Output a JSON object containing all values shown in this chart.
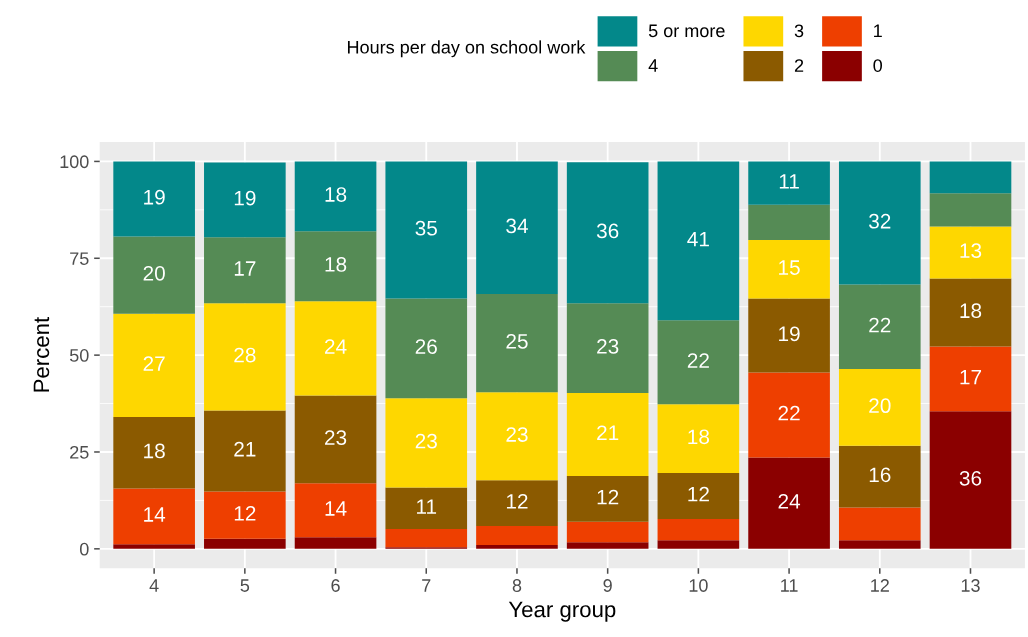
{
  "chart_data": {
    "type": "bar",
    "stacked": true,
    "xlabel": "Year group",
    "ylabel": "Percent",
    "legend_title": "Hours per day on school work",
    "legend": "top",
    "grid": true,
    "categories": [
      "4",
      "5",
      "6",
      "7",
      "8",
      "9",
      "10",
      "11",
      "12",
      "13"
    ],
    "ylim": [
      -5,
      105
    ],
    "yticks": [
      0,
      25,
      50,
      75,
      100
    ],
    "series": [
      {
        "name": "0",
        "color": "#8b0000",
        "values": [
          1.2,
          2.6,
          3.0,
          0.4,
          1.0,
          1.7,
          2.2,
          23.6,
          2.2,
          35.5
        ],
        "value_labels": [
          null,
          null,
          null,
          null,
          null,
          null,
          null,
          "24",
          null,
          "36"
        ]
      },
      {
        "name": "1",
        "color": "#ee3f00",
        "values": [
          14.4,
          12.2,
          13.9,
          4.7,
          4.9,
          5.3,
          5.5,
          21.9,
          8.5,
          16.7
        ],
        "value_labels": [
          "14",
          "12",
          "14",
          null,
          null,
          null,
          null,
          "22",
          null,
          "17"
        ]
      },
      {
        "name": "2",
        "color": "#8b5a00",
        "values": [
          18.4,
          20.9,
          22.7,
          10.7,
          11.8,
          11.8,
          11.9,
          19.1,
          15.9,
          17.6
        ],
        "value_labels": [
          "18",
          "21",
          "23",
          "11",
          "12",
          "12",
          "12",
          "19",
          "16",
          "18"
        ]
      },
      {
        "name": "3",
        "color": "#fed700",
        "values": [
          26.7,
          27.7,
          24.3,
          23.1,
          22.7,
          21.4,
          17.7,
          15.1,
          19.8,
          13.4
        ],
        "value_labels": [
          "27",
          "28",
          "24",
          "23",
          "23",
          "21",
          "18",
          "15",
          "20",
          "13"
        ]
      },
      {
        "name": "4",
        "color": "#558b55",
        "values": [
          19.9,
          17.0,
          18.1,
          25.7,
          25.4,
          23.2,
          21.7,
          9.1,
          21.8,
          8.6
        ],
        "value_labels": [
          "20",
          "17",
          "18",
          "26",
          "25",
          "23",
          "22",
          null,
          "22",
          null
        ]
      },
      {
        "name": "5 or more",
        "color": "#03888a",
        "values": [
          19.4,
          19.3,
          18.0,
          35.4,
          34.2,
          36.4,
          41.0,
          11.2,
          31.8,
          8.2
        ],
        "value_labels": [
          "19",
          "19",
          "18",
          "35",
          "34",
          "36",
          "41",
          "11",
          "32",
          null
        ]
      }
    ]
  }
}
